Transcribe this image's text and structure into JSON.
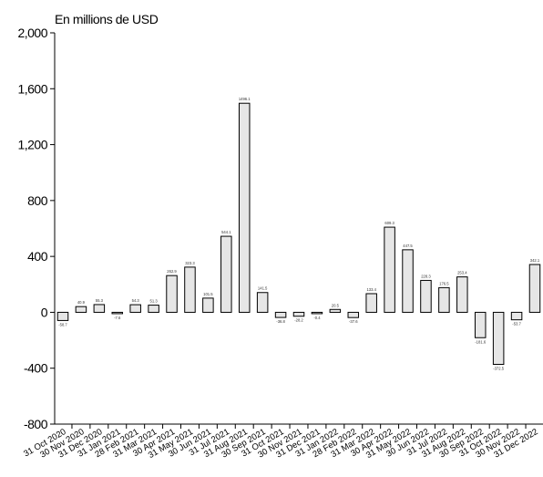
{
  "chart_data": {
    "type": "bar",
    "ylabel": "En millions de USD",
    "ylim": [
      -800,
      2000
    ],
    "yticks": [
      2000,
      1600,
      1200,
      800,
      400,
      0,
      -400,
      -800
    ],
    "ytick_labels": [
      "2,000",
      "1,600",
      "1,200",
      "800",
      "400",
      "0",
      "-400",
      "-800"
    ],
    "grid": false,
    "categories": [
      "31 Oct 2020",
      "30 Nov 2020",
      "31 Dec 2020",
      "31 Jan 2021",
      "28 Feb 2021",
      "31 Mar 2021",
      "30 Apr 2021",
      "31 May 2021",
      "30 Jun 2021",
      "31 Jul 2021",
      "31 Aug 2021",
      "30 Sep 2021",
      "31 Oct 2021",
      "30 Nov 2021",
      "31 Dec 2021",
      "31 Jan 2022",
      "28 Feb 2022",
      "31 Mar 2022",
      "30 Apr 2022",
      "31 May 2022",
      "30 Jun 2022",
      "31 Jul 2022",
      "31 Aug 2022",
      "30 Sep 2022",
      "31 Oct 2022",
      "30 Nov 2022",
      "31 Dec 2022"
    ],
    "values": [
      -58.7,
      40.9,
      55.3,
      -7.6,
      54.3,
      51.3,
      262.9,
      323.3,
      101.5,
      544.1,
      1496.1,
      141.5,
      -36.8,
      -28.2,
      -0.4,
      20.5,
      -37.6,
      133.4,
      609.3,
      447.5,
      228.3,
      176.5,
      253.4,
      -181.6,
      -372.5,
      -53.7,
      342.1
    ],
    "data_labels": [
      "-58.7",
      "40.9",
      "55.3",
      "-7.6",
      "54.3",
      "51.3",
      "262.9",
      "323.3",
      "101.5",
      "544.1",
      "1496.1",
      "141.5",
      "-36.8",
      "-28.2",
      "-0.4",
      "20.5",
      "-37.6",
      "133.4",
      "609.3",
      "447.5",
      "228.3",
      "176.5",
      "253.4",
      "-181.6",
      "-372.5",
      "-53.7",
      "342.1"
    ],
    "colors": {
      "bar_fill": "#e6e6e6",
      "bar_stroke": "#000000",
      "axis": "#000000"
    }
  }
}
